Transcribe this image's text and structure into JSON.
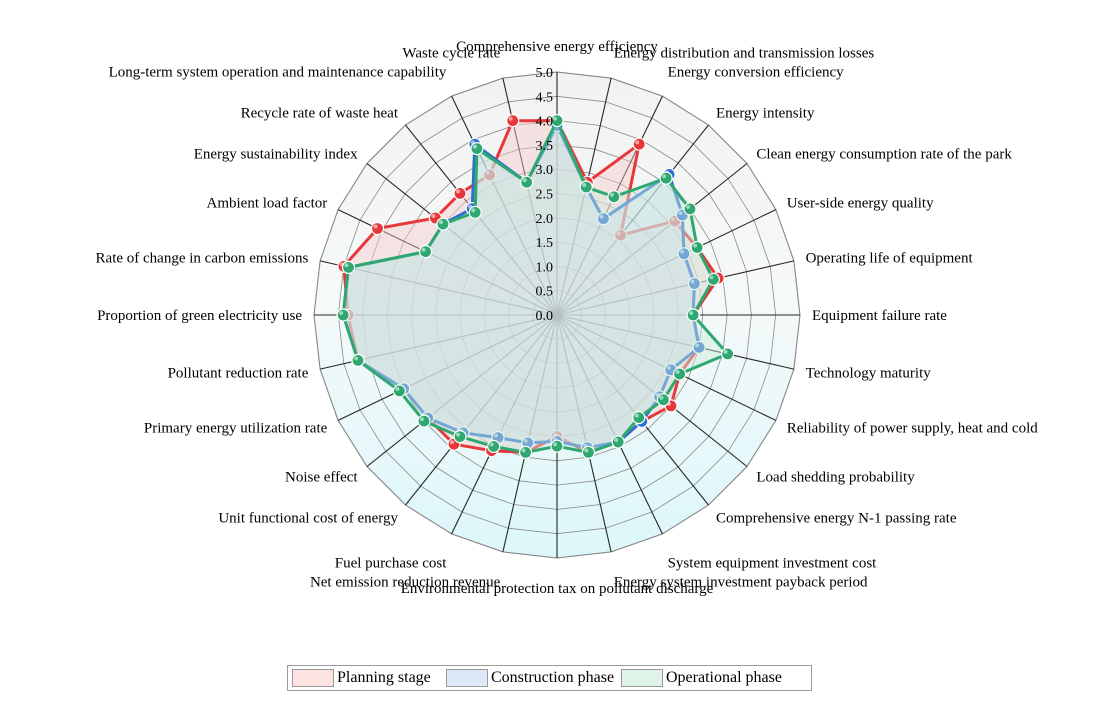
{
  "chart_data": {
    "type": "radar",
    "rlim": [
      0,
      5
    ],
    "ticks": [
      "0.0",
      "0.5",
      "1.0",
      "1.5",
      "2.0",
      "2.5",
      "3.0",
      "3.5",
      "4.0",
      "4.5",
      "5.0"
    ],
    "categories": [
      "Comprehensive energy efficiency",
      "Energy distribution and transmission losses",
      "Energy conversion efficiency",
      "Energy intensity",
      "Clean energy consumption rate of the park",
      "User-side energy quality",
      "Operating life of equipment",
      "Equipment failure rate",
      "Technology maturity",
      "Reliability of power supply, heat and cold",
      "Load shedding probability",
      "Comprehensive energy N-1 passing rate",
      "System equipment investment cost",
      "Energy system investment payback period",
      "Environmental protection tax on pollutant discharge",
      "Net emission reduction revenue",
      "Fuel purchase cost",
      "Unit functional cost of energy",
      "Noise effect",
      "Primary energy utilization rate",
      "Pollutant reduction rate",
      "Proportion of green electricity use",
      "Rate of change in carbon emissions",
      "Ambient load factor",
      "Energy sustainability index",
      "Recycle rate of waste heat",
      "Long-term system operation and maintenance capability",
      "Waste cycle rate"
    ],
    "series": [
      {
        "name": "Planning stage",
        "color": "#e8373a",
        "fill": "#f7c9c9",
        "values": [
          4.0,
          2.8,
          3.9,
          2.1,
          3.1,
          3.2,
          3.4,
          2.8,
          3.0,
          2.8,
          3.0,
          2.8,
          2.9,
          2.9,
          2.5,
          2.9,
          3.1,
          3.4,
          3.4,
          3.5,
          4.2,
          4.3,
          4.5,
          4.1,
          3.2,
          3.2,
          3.2,
          4.1
        ]
      },
      {
        "name": "Construction phase",
        "color": "#2f6fd0",
        "fill": "#c9daf5",
        "values": [
          3.9,
          2.7,
          2.2,
          3.7,
          3.3,
          2.9,
          2.9,
          2.8,
          3.0,
          2.6,
          2.7,
          2.8,
          2.9,
          2.8,
          2.6,
          2.7,
          2.8,
          3.1,
          3.4,
          3.5,
          4.2,
          4.4,
          4.4,
          3.0,
          3.0,
          2.8,
          3.9,
          2.8
        ]
      },
      {
        "name": "Operational phase",
        "color": "#2ea870",
        "fill": "#c9ecd9",
        "values": [
          4.0,
          2.7,
          2.7,
          3.6,
          3.5,
          3.2,
          3.3,
          2.8,
          3.6,
          2.8,
          2.8,
          2.7,
          2.9,
          2.9,
          2.7,
          2.9,
          3.0,
          3.2,
          3.5,
          3.6,
          4.2,
          4.4,
          4.4,
          3.0,
          3.0,
          2.7,
          3.8,
          2.8
        ]
      }
    ],
    "legend_position": "bottom"
  }
}
